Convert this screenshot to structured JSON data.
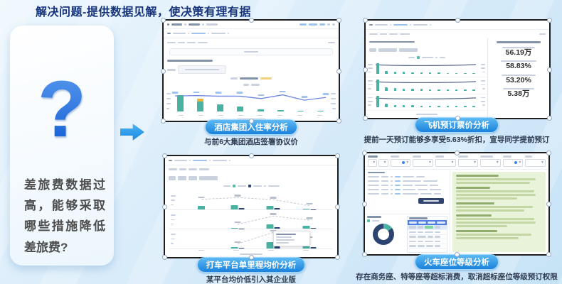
{
  "slide": {
    "title": "解决问题-提供数据见解，使决策有理有据",
    "question_mark": "?",
    "question_text": "差旅费数据过高，能够采取哪些措施降低差旅费?"
  },
  "panels": [
    {
      "caption": "酒店集团入住率分析",
      "subtitle": "与前6大集团酒店签署协议价"
    },
    {
      "caption": "飞机预订票价分析",
      "subtitle": "提前一天预订能够多享受5.63%折扣，宣导同学提前预订"
    },
    {
      "caption": "打车平台单里程均价分析",
      "subtitle": "某平台均价低引入其企业版"
    },
    {
      "caption": "火车座位等级分析",
      "subtitle": "存在商务座、特等座等超标消费，取消超标座位等级预订权限"
    }
  ],
  "colors": {
    "teal": "#49b2a2",
    "orange": "#f0b13a",
    "line_blue": "#6b86e3",
    "navy": "#2d4470",
    "pill_blue": "#1b82dc",
    "green_panel": "#e9f3d9",
    "table_header": "#4a7ee0",
    "green_cell": "#7ed79a"
  },
  "chart_data": [
    {
      "type": "bar",
      "title": "酒店集团入住率分析",
      "note": "8 teal bars descending, 2nd bar orange-capped, blue rate line; labels illegible",
      "bars": [
        [
          88,
          0
        ],
        [
          52,
          18
        ],
        [
          38,
          0
        ],
        [
          27,
          0
        ],
        [
          12,
          0
        ],
        [
          8,
          0
        ],
        [
          5,
          0
        ],
        [
          4,
          0
        ]
      ],
      "line": [
        16,
        14,
        17,
        17,
        30,
        10,
        39,
        24
      ]
    },
    {
      "type": "line",
      "title": "飞机预订票价分析",
      "note": "3 stacked rows: fare line + order-count bars, first bar tall",
      "line": [
        36,
        42,
        46,
        48,
        49,
        49,
        48,
        46,
        43,
        39,
        32
      ],
      "small_bars": [
        90,
        26,
        20,
        17,
        15,
        13,
        12,
        11,
        10,
        10,
        9,
        9
      ],
      "kpis": [
        {
          "value": "56.19万"
        },
        {
          "value": "58.83%"
        },
        {
          "value": "53.20%"
        },
        {
          "value": "5.38万"
        }
      ]
    },
    {
      "type": "bar",
      "title": "打车平台单里程均价分析",
      "note": "3 rows of teal(platform)/navy(enterprise) grouped bars with dashed price line",
      "rows": [
        [
          [
            46,
            0
          ],
          [
            56,
            18
          ],
          [
            44,
            16
          ],
          [
            9,
            6
          ]
        ],
        [
          [
            0,
            0
          ],
          [
            12,
            5
          ],
          [
            60,
            22
          ],
          [
            36,
            14
          ]
        ],
        [
          [
            0,
            0
          ],
          [
            10,
            5
          ],
          [
            76,
            26
          ],
          [
            38,
            17
          ]
        ]
      ]
    },
    {
      "type": "composite",
      "title": "火车座位等级分析",
      "note": "filters, record list, analysis text panel, donut + table",
      "donut": {
        "teal_pct": 15,
        "navy_pct": 85
      }
    }
  ]
}
